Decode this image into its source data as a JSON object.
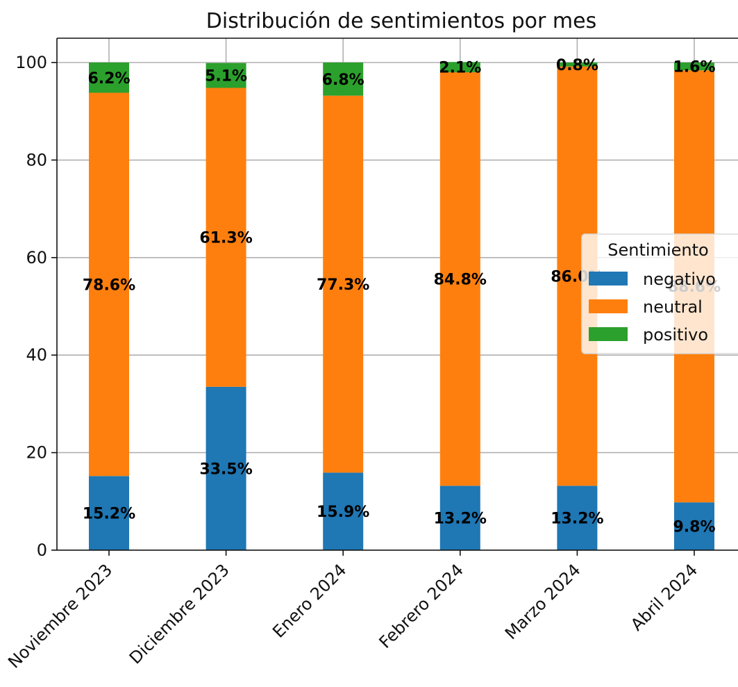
{
  "chart_data": {
    "type": "bar",
    "stacked": true,
    "title": "Distribución de sentimientos por mes",
    "xlabel": "",
    "ylabel": "",
    "ylim": [
      0,
      100
    ],
    "yticks": [
      0,
      20,
      40,
      60,
      80,
      100
    ],
    "grid": true,
    "categories": [
      "Noviembre 2023",
      "Diciembre 2023",
      "Enero 2024",
      "Febrero 2024",
      "Marzo 2024",
      "Abril 2024"
    ],
    "series": [
      {
        "name": "negativo",
        "color": "#1f77b4",
        "values": [
          15.2,
          33.5,
          15.9,
          13.2,
          13.2,
          9.8
        ],
        "labels": [
          "15.2%",
          "33.5%",
          "15.9%",
          "13.2%",
          "13.2%",
          "9.8%"
        ]
      },
      {
        "name": "neutral",
        "color": "#ff7f0e",
        "values": [
          78.6,
          61.3,
          77.3,
          84.8,
          86.0,
          88.6
        ],
        "labels": [
          "78.6%",
          "61.3%",
          "77.3%",
          "84.8%",
          "86.0%",
          "88.6%"
        ]
      },
      {
        "name": "positivo",
        "color": "#2ca02c",
        "values": [
          6.2,
          5.1,
          6.8,
          2.1,
          0.8,
          1.6
        ],
        "labels": [
          "6.2%",
          "5.1%",
          "6.8%",
          "2.1%",
          "0.8%",
          "1.6%"
        ]
      }
    ],
    "legend": {
      "title": "Sentimiento",
      "position": "center-right"
    }
  }
}
